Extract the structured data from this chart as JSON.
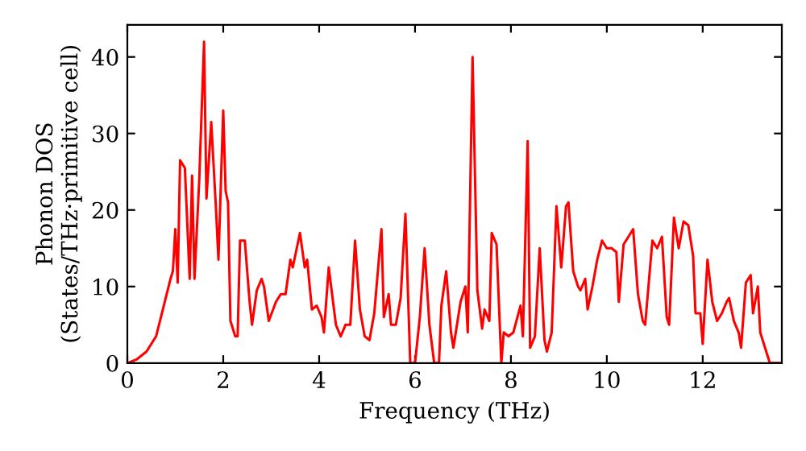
{
  "chart_data": {
    "type": "line",
    "xlabel": "Frequency (THz)",
    "ylabel": "Phonon DOS\n(States/THz·primitive cell)",
    "x": [
      0,
      0.2,
      0.4,
      0.6,
      0.7,
      0.8,
      0.9,
      0.95,
      1.0,
      1.05,
      1.1,
      1.2,
      1.3,
      1.35,
      1.4,
      1.5,
      1.6,
      1.65,
      1.75,
      1.85,
      1.9,
      2.0,
      2.05,
      2.1,
      2.15,
      2.25,
      2.3,
      2.35,
      2.45,
      2.55,
      2.6,
      2.7,
      2.8,
      2.85,
      2.95,
      3.1,
      3.2,
      3.3,
      3.4,
      3.45,
      3.55,
      3.6,
      3.7,
      3.75,
      3.85,
      3.95,
      4.05,
      4.1,
      4.2,
      4.35,
      4.45,
      4.55,
      4.65,
      4.75,
      4.85,
      4.95,
      5.05,
      5.15,
      5.3,
      5.35,
      5.45,
      5.5,
      5.6,
      5.7,
      5.8,
      5.9,
      6.0,
      6.1,
      6.2,
      6.3,
      6.4,
      6.5,
      6.55,
      6.65,
      6.75,
      6.8,
      6.95,
      7.05,
      7.1,
      7.2,
      7.3,
      7.4,
      7.45,
      7.55,
      7.6,
      7.7,
      7.8,
      7.85,
      7.95,
      8.05,
      8.2,
      8.25,
      8.35,
      8.4,
      8.5,
      8.6,
      8.7,
      8.75,
      8.85,
      8.95,
      9.05,
      9.15,
      9.2,
      9.3,
      9.4,
      9.45,
      9.55,
      9.6,
      9.7,
      9.8,
      9.9,
      10.0,
      10.1,
      10.2,
      10.25,
      10.35,
      10.45,
      10.55,
      10.65,
      10.75,
      10.8,
      10.95,
      11.05,
      11.15,
      11.25,
      11.3,
      11.4,
      11.5,
      11.6,
      11.7,
      11.8,
      11.85,
      11.95,
      12.0,
      12.1,
      12.2,
      12.3,
      12.4,
      12.5,
      12.55,
      12.65,
      12.75,
      12.8,
      12.9,
      13.0,
      13.05,
      13.15,
      13.2,
      13.4,
      13.65
    ],
    "series": [
      {
        "color": "#ff0000",
        "values": [
          0,
          0.5,
          1.5,
          3.5,
          6,
          8.5,
          11,
          12,
          17.5,
          10.5,
          26.5,
          25.5,
          11,
          24.5,
          11,
          24,
          42,
          21.5,
          31.5,
          20,
          13.5,
          33,
          22.5,
          21,
          5.5,
          3.5,
          3.5,
          16,
          16,
          8,
          5,
          9.5,
          11,
          10,
          5.5,
          8,
          9,
          9,
          13.5,
          12.5,
          15.5,
          17,
          12.5,
          13.5,
          7,
          7.5,
          6,
          4,
          12.5,
          5,
          3.5,
          5,
          5,
          16,
          7,
          3.5,
          3,
          6.5,
          17.5,
          6,
          9,
          5,
          5,
          8.5,
          19.5,
          0,
          0,
          6,
          15,
          5,
          0,
          0,
          7.5,
          12,
          4,
          2,
          8,
          10,
          4,
          40,
          9.5,
          4.5,
          7,
          5.5,
          17,
          15.5,
          0,
          4,
          3.5,
          4,
          7.5,
          3.5,
          29,
          2,
          3.5,
          15,
          3,
          1.5,
          4,
          20.5,
          12.5,
          20.5,
          21,
          12,
          10,
          9.5,
          11,
          7,
          10,
          13.5,
          16,
          15,
          15,
          14.5,
          8,
          15.5,
          16.5,
          17.5,
          9,
          5.5,
          5,
          16,
          15,
          16.5,
          6,
          5,
          19,
          15,
          18.5,
          18,
          14,
          6.5,
          6.5,
          2.5,
          13.5,
          8,
          5.5,
          6.5,
          8,
          8.5,
          5.5,
          4,
          2,
          10.5,
          11.5,
          6.5,
          10,
          4,
          0,
          0
        ]
      }
    ],
    "xlim": [
      0,
      13.65
    ],
    "ylim": [
      0,
      44.2
    ],
    "xticks": [
      0,
      2,
      4,
      6,
      8,
      10,
      12
    ],
    "yticks": [
      0,
      10,
      20,
      30,
      40
    ],
    "grid": false,
    "legend": false,
    "marker": "none",
    "line_style": "solid"
  }
}
